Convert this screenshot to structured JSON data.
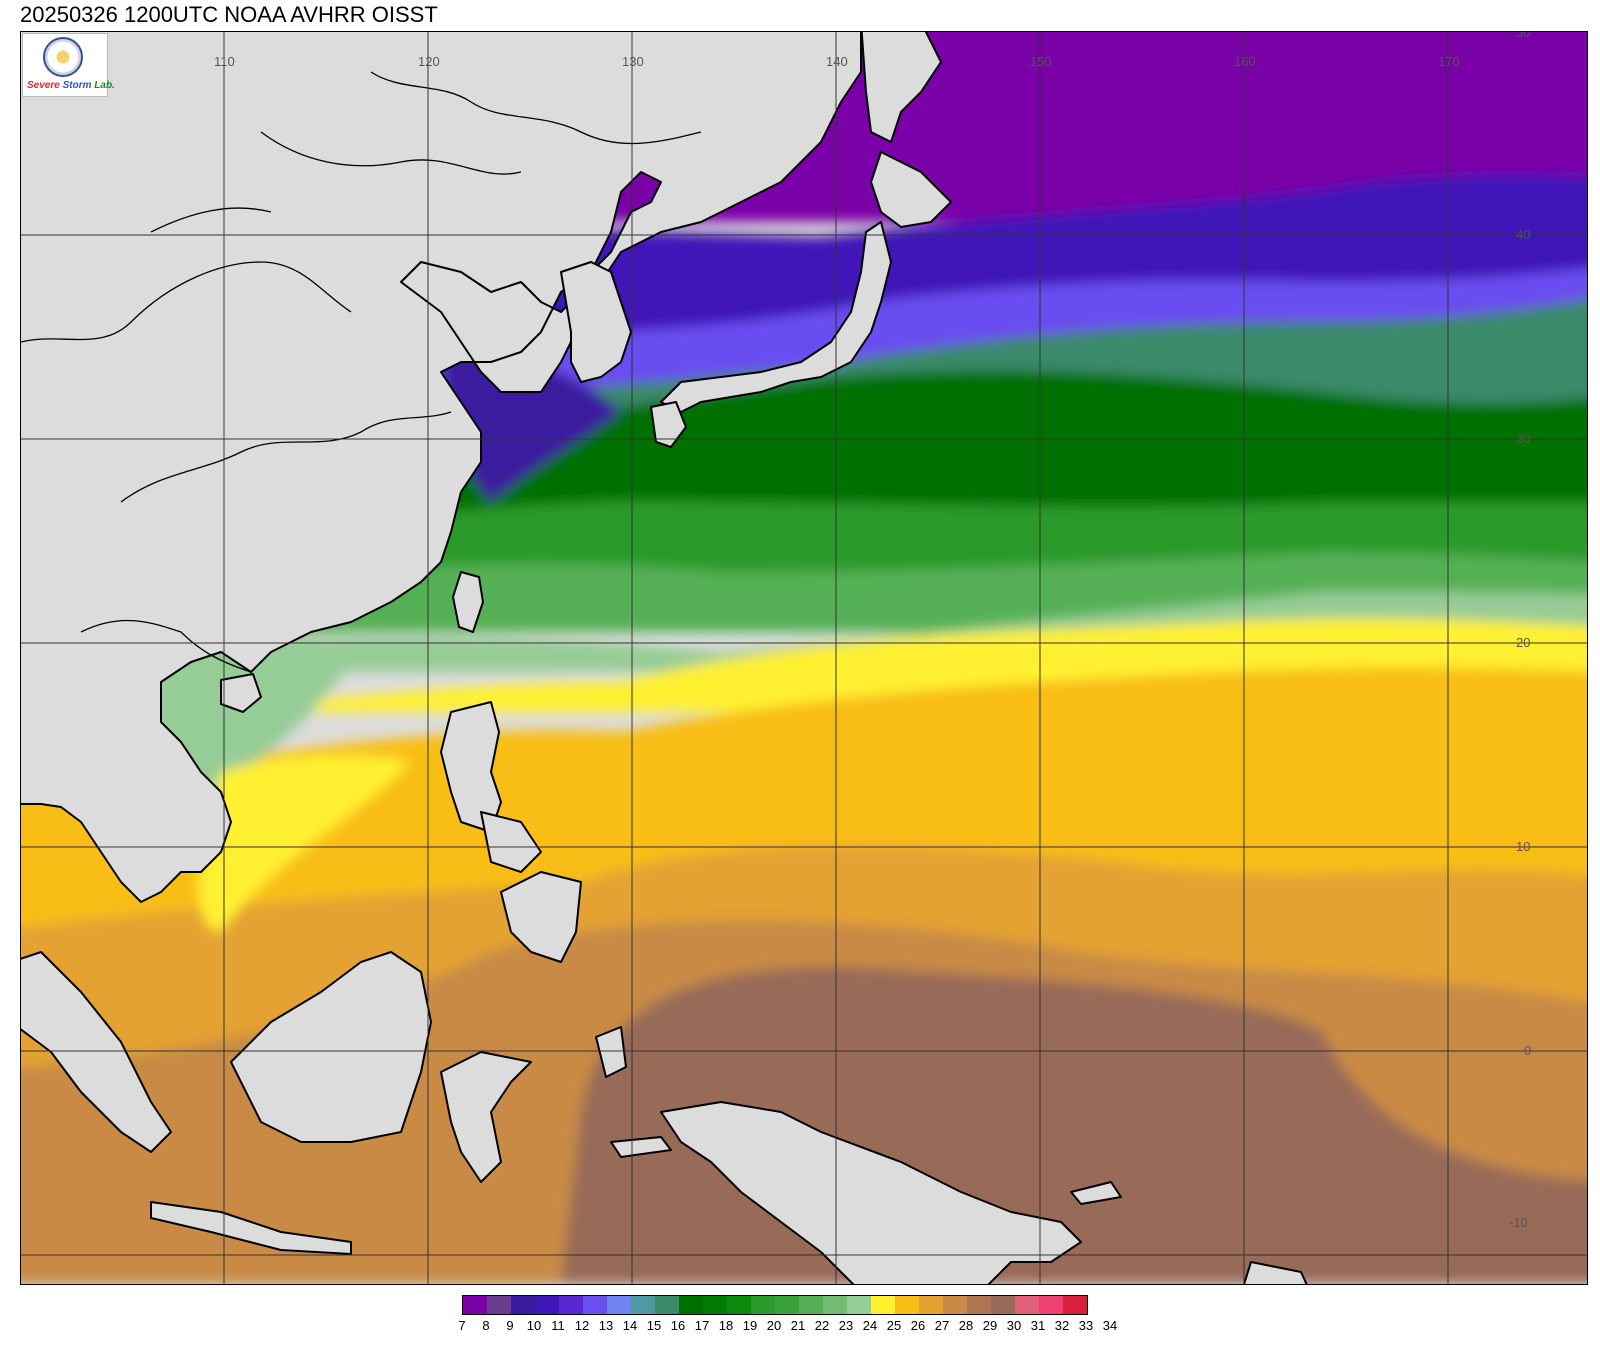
{
  "title": "20250326 1200UTC NOAA AVHRR OISST",
  "logo": {
    "text_parts": [
      "Severe",
      "Storm",
      "Lab."
    ],
    "colors": [
      "#d62b2b",
      "#2a55c9",
      "#1b8a2b"
    ]
  },
  "map": {
    "lon_labels": [
      "110",
      "120",
      "130",
      "140",
      "150",
      "160",
      "170"
    ],
    "lat_labels": [
      "50",
      "40",
      "30",
      "20",
      "10",
      "0",
      "-10"
    ],
    "land_color": "#dcdcdc",
    "coast_color": "#000000",
    "grid_color": "#333333"
  },
  "colorbar": {
    "labels": [
      "7",
      "8",
      "9",
      "10",
      "11",
      "12",
      "13",
      "14",
      "15",
      "16",
      "17",
      "18",
      "19",
      "20",
      "21",
      "22",
      "23",
      "24",
      "25",
      "26",
      "27",
      "28",
      "29",
      "30",
      "31",
      "32",
      "33",
      "34"
    ],
    "colors": [
      "#7a00a8",
      "#6b3d8f",
      "#3a1a9e",
      "#3f18b8",
      "#5a26d4",
      "#6a4ef0",
      "#6f86f2",
      "#4f9aa0",
      "#3a8a6a",
      "#007000",
      "#007a00",
      "#0c8a0c",
      "#2a9a2a",
      "#3aa23a",
      "#55b055",
      "#72bc72",
      "#96cc96",
      "#fff030",
      "#f8be18",
      "#e4a230",
      "#c88a44",
      "#b07450",
      "#986a58",
      "#e0607a",
      "#f04070",
      "#d8203c"
    ]
  },
  "chart_data": {
    "type": "heatmap",
    "title": "20250326 1200UTC NOAA AVHRR OISST",
    "x_ticks": [
      110,
      120,
      130,
      140,
      150,
      160,
      170
    ],
    "y_ticks": [
      50,
      40,
      30,
      20,
      10,
      0,
      -10
    ],
    "colorbar_levels": [
      7,
      8,
      9,
      10,
      11,
      12,
      13,
      14,
      15,
      16,
      17,
      18,
      19,
      20,
      21,
      22,
      23,
      24,
      25,
      26,
      27,
      28,
      29,
      30,
      31,
      32,
      33,
      34
    ]
  }
}
